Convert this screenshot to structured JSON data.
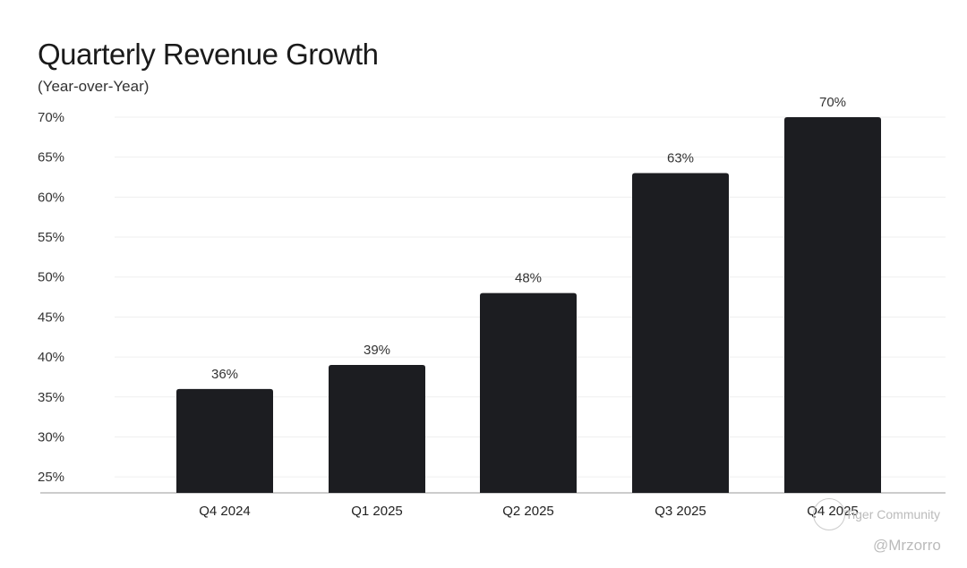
{
  "chart_data": {
    "type": "bar",
    "title": "Quarterly Revenue Growth",
    "subtitle": "(Year-over-Year)",
    "categories": [
      "Q4 2024",
      "Q1 2025",
      "Q2 2025",
      "Q3 2025",
      "Q4 2025"
    ],
    "values": [
      36,
      39,
      48,
      63,
      70
    ],
    "data_labels": [
      "36%",
      "39%",
      "48%",
      "63%",
      "70%"
    ],
    "xlabel": "",
    "ylabel": "",
    "ylim": [
      23,
      70
    ],
    "yticks": [
      25,
      30,
      35,
      40,
      45,
      50,
      55,
      60,
      65,
      70
    ],
    "ytick_labels": [
      "25%",
      "30%",
      "35%",
      "40%",
      "45%",
      "50%",
      "55%",
      "60%",
      "65%",
      "70%"
    ],
    "grid": true,
    "bar_color": "#1c1d21"
  },
  "watermark": {
    "brand": "Tiger Community",
    "handle": "@Mrzorro"
  }
}
